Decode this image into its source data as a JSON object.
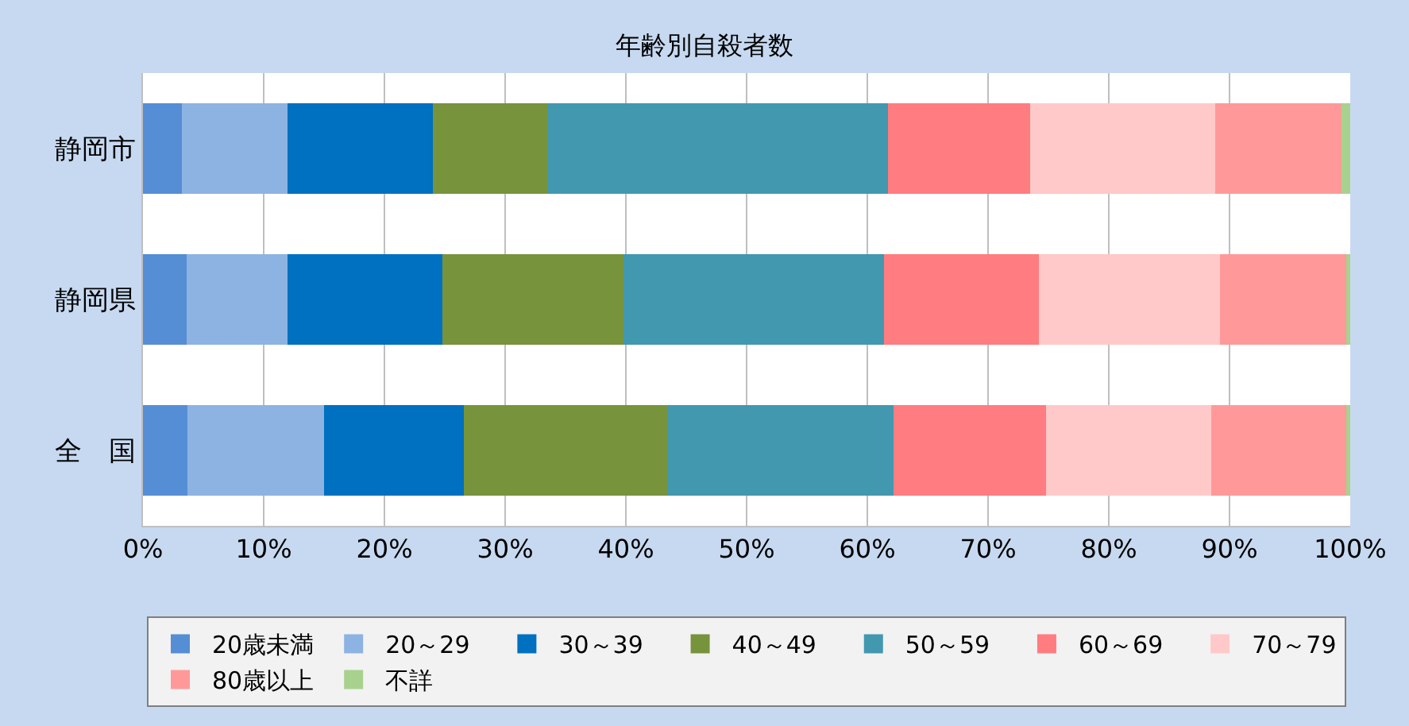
{
  "chart_data": {
    "type": "bar",
    "title": "年齢別自殺者数",
    "orientation": "horizontal",
    "stacked": true,
    "categories": [
      "静岡市",
      "静岡県",
      "全　国"
    ],
    "series": [
      {
        "name": "20歳未満",
        "color": "#558ed5",
        "values": [
          3.2,
          3.6,
          3.7
        ]
      },
      {
        "name": "20～29",
        "color": "#8db3e2",
        "values": [
          8.8,
          8.4,
          11.3
        ]
      },
      {
        "name": "30～39",
        "color": "#0070c0",
        "values": [
          12.0,
          12.8,
          11.6
        ]
      },
      {
        "name": "40～49",
        "color": "#77933c",
        "values": [
          9.5,
          15.0,
          16.9
        ]
      },
      {
        "name": "50～59",
        "color": "#4198af",
        "values": [
          28.2,
          21.6,
          18.7
        ]
      },
      {
        "name": "60～69",
        "color": "#ff7c80",
        "values": [
          11.8,
          12.8,
          12.6
        ]
      },
      {
        "name": "70～79",
        "color": "#ffc9c9",
        "values": [
          15.3,
          15.0,
          13.7
        ]
      },
      {
        "name": "80歳以上",
        "color": "#ff9999",
        "values": [
          10.5,
          10.5,
          11.2
        ]
      },
      {
        "name": "不詳",
        "color": "#a9d18e",
        "values": [
          0.7,
          0.3,
          0.3
        ]
      }
    ],
    "xlim": [
      0,
      100
    ],
    "xticks": [
      {
        "value": 0,
        "label": "0%"
      },
      {
        "value": 10,
        "label": "10%"
      },
      {
        "value": 20,
        "label": "20%"
      },
      {
        "value": 30,
        "label": "30%"
      },
      {
        "value": 40,
        "label": "40%"
      },
      {
        "value": 50,
        "label": "50%"
      },
      {
        "value": 60,
        "label": "60%"
      },
      {
        "value": 70,
        "label": "70%"
      },
      {
        "value": 80,
        "label": "80%"
      },
      {
        "value": 90,
        "label": "90%"
      },
      {
        "value": 100,
        "label": "100%"
      }
    ],
    "grid": "x",
    "legend": "bottom"
  }
}
